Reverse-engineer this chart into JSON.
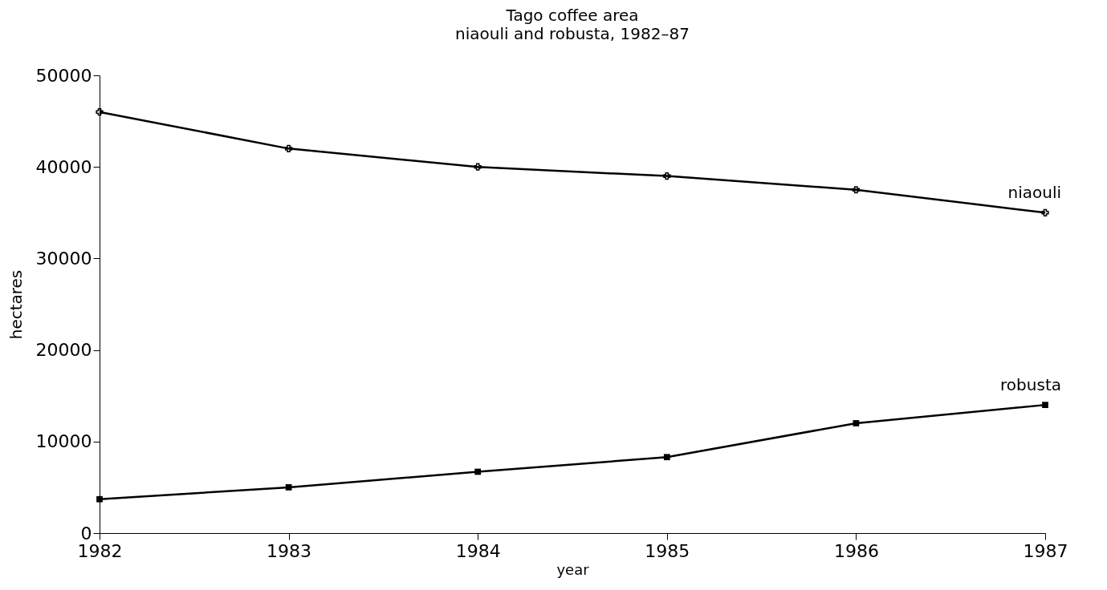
{
  "chart_data": {
    "type": "line",
    "title": "Tago coffee area",
    "subtitle": "niaouli and robusta, 1982–87",
    "xlabel": "year",
    "ylabel": "hectares",
    "x": [
      1982,
      1983,
      1984,
      1985,
      1986,
      1987
    ],
    "xlim": [
      1982,
      1987
    ],
    "xticks": [
      1982,
      1983,
      1984,
      1985,
      1986,
      1987
    ],
    "ylim": [
      0,
      50000
    ],
    "yticks": [
      0,
      10000,
      20000,
      30000,
      40000,
      50000
    ],
    "grid": false,
    "legend": false,
    "line_style": "solid",
    "series": [
      {
        "name": "niaouli",
        "color": "#000000",
        "marker": "cross",
        "values": [
          46000,
          42000,
          40000,
          39000,
          37500,
          35000
        ]
      },
      {
        "name": "robusta",
        "color": "#000000",
        "marker": "square",
        "values": [
          3700,
          5000,
          6700,
          8300,
          12000,
          14000
        ]
      }
    ]
  }
}
